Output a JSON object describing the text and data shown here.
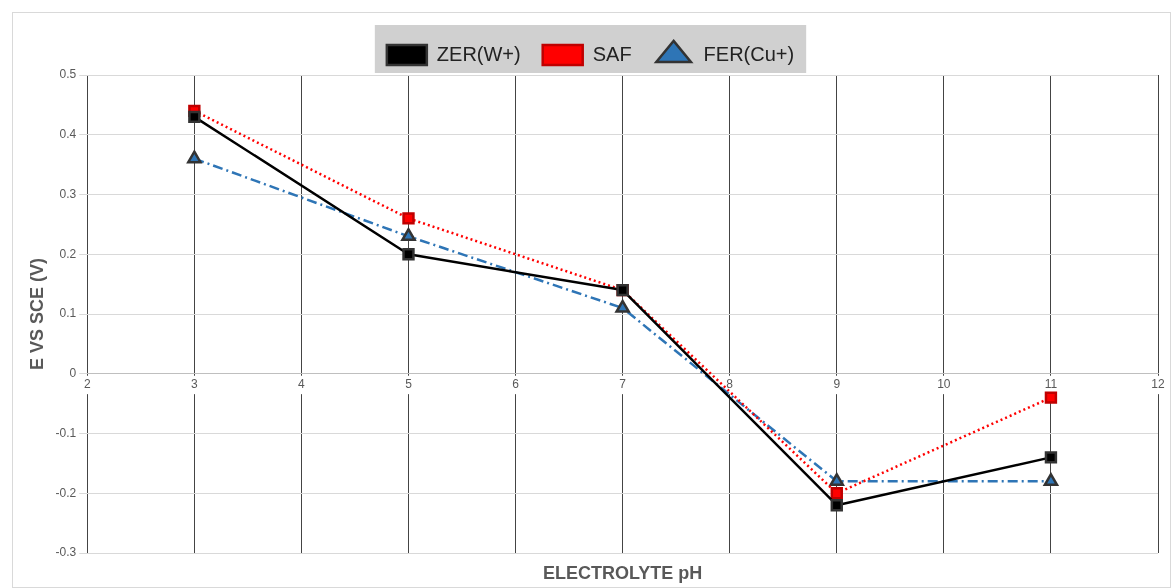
{
  "chart_data": {
    "type": "line",
    "xlabel": "ELECTROLYTE pH",
    "ylabel": "E VS SCE (V)",
    "x": [
      3,
      5,
      7,
      9,
      11
    ],
    "series": [
      {
        "name": "ZER(W+)",
        "color": "#000000",
        "values": [
          0.43,
          0.2,
          0.14,
          -0.22,
          -0.14
        ],
        "marker": "square",
        "line_style": "solid"
      },
      {
        "name": "SAF",
        "color": "#ff0000",
        "values": [
          0.44,
          0.26,
          0.14,
          -0.2,
          -0.04
        ],
        "marker": "square",
        "line_style": "dotted"
      },
      {
        "name": "FER(Cu+)",
        "color": "#2e75b6",
        "values": [
          0.36,
          0.23,
          0.11,
          -0.18,
          -0.18
        ],
        "marker": "triangle",
        "line_style": "dashed"
      }
    ],
    "xlim": [
      2,
      12
    ],
    "xticks": [
      2,
      3,
      4,
      5,
      6,
      7,
      8,
      9,
      10,
      11,
      12
    ],
    "ylim": [
      -0.3,
      0.5
    ],
    "yticks": [
      -0.3,
      -0.2,
      -0.1,
      0,
      0.1,
      0.2,
      0.3,
      0.4,
      0.5
    ],
    "grid": true,
    "legend": "top"
  }
}
